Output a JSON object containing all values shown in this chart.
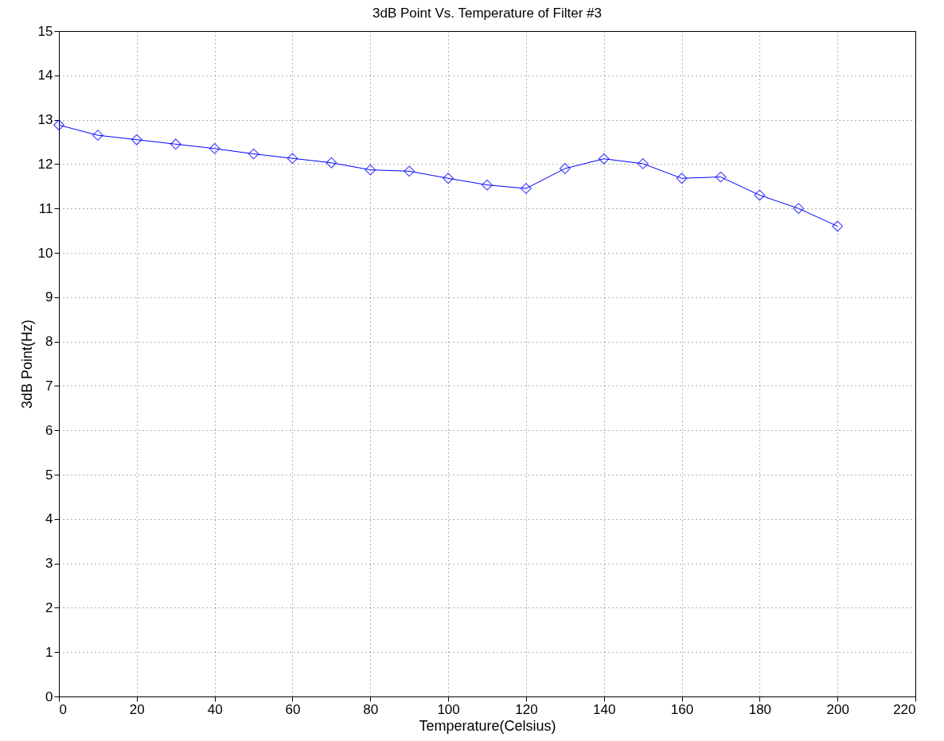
{
  "chart_data": {
    "type": "line",
    "title": "3dB Point Vs. Temperature of Filter #3",
    "xlabel": "Temperature(Celsius)",
    "ylabel": "3dB Point(Hz)",
    "x": [
      0,
      10,
      20,
      30,
      40,
      50,
      60,
      70,
      80,
      90,
      100,
      110,
      120,
      130,
      140,
      150,
      160,
      170,
      180,
      190,
      200
    ],
    "series": [
      {
        "color": "#0000ff",
        "values": [
          12.88,
          12.65,
          12.55,
          12.45,
          12.35,
          12.23,
          12.13,
          12.03,
          11.87,
          11.84,
          11.68,
          11.53,
          11.45,
          11.9,
          12.12,
          12.01,
          11.68,
          11.71,
          11.3,
          11.0,
          10.6
        ]
      }
    ],
    "xlim": [
      0,
      220
    ],
    "xticks": [
      0,
      20,
      40,
      60,
      80,
      100,
      120,
      140,
      160,
      180,
      200,
      220
    ],
    "ylim": [
      0,
      15
    ],
    "yticks": [
      0,
      1,
      2,
      3,
      4,
      5,
      6,
      7,
      8,
      9,
      10,
      11,
      12,
      13,
      14,
      15
    ],
    "grid": true,
    "marker": "diamond",
    "line_style": "solid"
  }
}
